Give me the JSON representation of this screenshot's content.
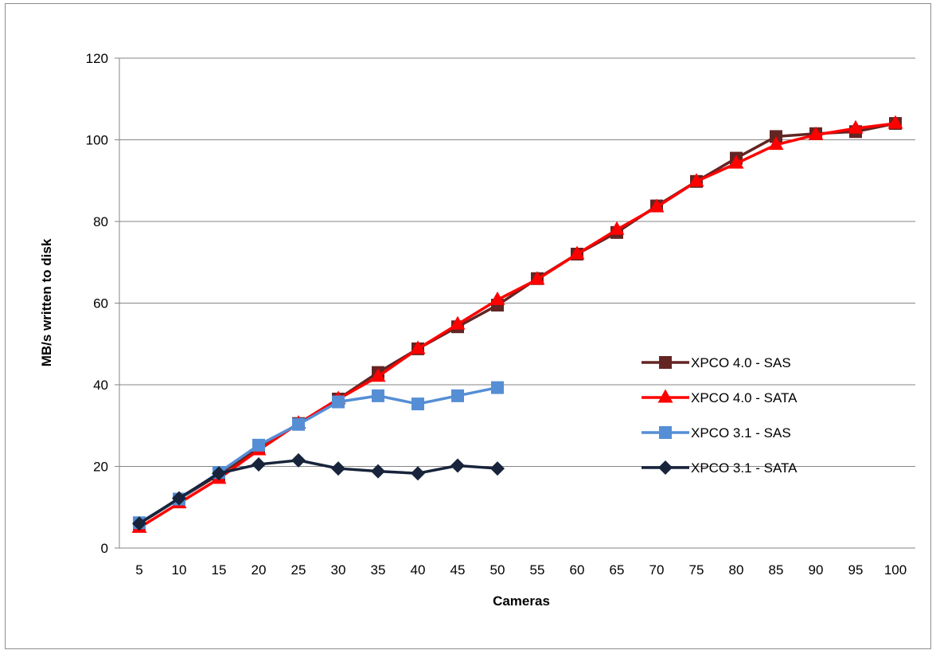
{
  "chart_data": {
    "type": "line",
    "title": "",
    "xlabel": "Cameras",
    "ylabel": "MB/s written to disk",
    "categories": [
      "5",
      "10",
      "15",
      "20",
      "25",
      "30",
      "35",
      "40",
      "45",
      "50",
      "55",
      "60",
      "65",
      "70",
      "75",
      "80",
      "85",
      "90",
      "95",
      "100"
    ],
    "ylim": [
      0,
      120
    ],
    "yticks": [
      0,
      20,
      40,
      60,
      80,
      100,
      120
    ],
    "grid": true,
    "legend": "right",
    "series": [
      {
        "name": "XPCO 4.0 - SAS",
        "color": "#632523",
        "marker": "square",
        "values": [
          6.0,
          12.0,
          18.0,
          24.5,
          30.5,
          36.5,
          43.0,
          48.8,
          54.2,
          59.5,
          66.0,
          72.0,
          77.3,
          83.8,
          89.8,
          95.5,
          100.8,
          101.5,
          102.0,
          104.0
        ]
      },
      {
        "name": "XPCO 4.0 - SATA",
        "color": "#ff0000",
        "marker": "triangle",
        "values": [
          5.0,
          11.0,
          17.0,
          24.0,
          30.5,
          36.5,
          42.0,
          48.8,
          54.8,
          60.8,
          65.8,
          72.0,
          78.0,
          83.5,
          89.8,
          94.2,
          98.8,
          101.2,
          102.8,
          104.0
        ]
      },
      {
        "name": "XPCO 3.1 - SAS",
        "color": "#558ed5",
        "marker": "square",
        "values": [
          6.2,
          12.0,
          18.5,
          25.2,
          30.3,
          35.8,
          37.3,
          35.3,
          37.3,
          39.3,
          null,
          null,
          null,
          null,
          null,
          null,
          null,
          null,
          null,
          null
        ]
      },
      {
        "name": "XPCO 3.1 - SATA",
        "color": "#17243b",
        "marker": "diamond",
        "values": [
          6.0,
          12.2,
          18.3,
          20.5,
          21.5,
          19.5,
          18.8,
          18.3,
          20.2,
          19.5,
          null,
          null,
          null,
          null,
          null,
          null,
          null,
          null,
          null,
          null
        ]
      }
    ]
  }
}
